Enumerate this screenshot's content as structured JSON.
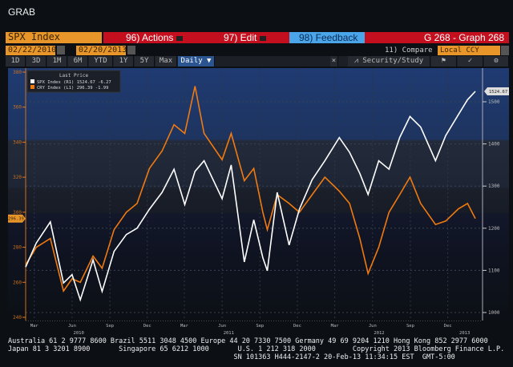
{
  "window_title": "GRAB",
  "toolbar": {
    "ticker": "SPX Index",
    "actions": "96) Actions",
    "edit": "97) Edit",
    "feedback": "98) Feedback",
    "function": "G 268 - Graph 268",
    "start_date": "02/22/2010",
    "end_date": "02/20/2013",
    "compare": "11) Compare",
    "currency": "Local CCY",
    "periods": [
      "1D",
      "3D",
      "1M",
      "6M",
      "YTD",
      "1Y",
      "5Y",
      "Max"
    ],
    "frequency": "Daily ▼",
    "security_study": "Security/Study"
  },
  "colors": {
    "spx": "#ffffff",
    "cry": "#f07a10",
    "red_bar": "#c4101e",
    "amber": "#e8952a",
    "feedback": "#4aa6e8"
  },
  "chart_data": {
    "type": "line",
    "legend": {
      "title": "Last Price",
      "placement": "top-left",
      "entries": [
        {
          "name": "SPX Index",
          "axis": "(R1)",
          "last": "1524.67",
          "change": "-6.27"
        },
        {
          "name": "CRY Index",
          "axis": "(L1)",
          "last": "296.39",
          "change": "-1.99"
        }
      ]
    },
    "left_axis": {
      "ticks": [
        240,
        260,
        280,
        300,
        320,
        340,
        360,
        380
      ],
      "ylim": [
        240,
        380
      ]
    },
    "right_axis": {
      "ticks": [
        1000,
        1100,
        1200,
        1300,
        1400,
        1500
      ],
      "ylim": [
        980,
        1560
      ]
    },
    "xlim": [
      "2010-02-22",
      "2013-02-20"
    ],
    "x_ticks": [
      "Mar",
      "Jun",
      "Sep",
      "Dec",
      "Mar",
      "Jun",
      "Sep",
      "Dec",
      "Mar",
      "Jun",
      "Sep",
      "Dec"
    ],
    "x_tick_dates": [
      "2010-03-15",
      "2010-06-15",
      "2010-09-15",
      "2010-12-15",
      "2011-03-15",
      "2011-06-15",
      "2011-09-15",
      "2011-12-15",
      "2012-03-15",
      "2012-06-15",
      "2012-09-15",
      "2012-12-15"
    ],
    "years": [
      "2010",
      "2011",
      "2012",
      "2013"
    ],
    "year_dates": [
      "2010-07-01",
      "2011-07-01",
      "2012-07-01",
      "2013-01-25"
    ],
    "last_price_tags": {
      "right": "1524.67",
      "left": "296.39"
    },
    "x": [
      "2010-02-22",
      "2010-03-20",
      "2010-04-23",
      "2010-05-25",
      "2010-06-15",
      "2010-07-05",
      "2010-08-05",
      "2010-08-27",
      "2010-09-25",
      "2010-10-25",
      "2010-11-20",
      "2010-12-20",
      "2011-01-20",
      "2011-02-18",
      "2011-03-16",
      "2011-04-10",
      "2011-05-02",
      "2011-06-15",
      "2011-07-07",
      "2011-08-08",
      "2011-08-31",
      "2011-09-22",
      "2011-10-03",
      "2011-10-27",
      "2011-11-25",
      "2011-12-20",
      "2012-01-20",
      "2012-02-20",
      "2012-03-26",
      "2012-04-20",
      "2012-05-15",
      "2012-06-04",
      "2012-06-30",
      "2012-07-25",
      "2012-08-20",
      "2012-09-14",
      "2012-10-10",
      "2012-11-15",
      "2012-12-10",
      "2013-01-10",
      "2013-02-01",
      "2013-02-20"
    ],
    "series": [
      {
        "name": "SPX Index",
        "axis": "right",
        "values": [
          1108,
          1165,
          1215,
          1070,
          1090,
          1030,
          1125,
          1050,
          1145,
          1185,
          1200,
          1245,
          1285,
          1340,
          1256,
          1335,
          1360,
          1270,
          1350,
          1120,
          1220,
          1130,
          1099,
          1285,
          1160,
          1245,
          1315,
          1360,
          1415,
          1380,
          1330,
          1280,
          1360,
          1340,
          1415,
          1465,
          1440,
          1360,
          1420,
          1470,
          1505,
          1524.67
        ]
      },
      {
        "name": "CRY Index",
        "axis": "left",
        "values": [
          270,
          280,
          285,
          255,
          262,
          260,
          275,
          268,
          290,
          300,
          305,
          325,
          335,
          350,
          345,
          372,
          345,
          330,
          345,
          318,
          325,
          300,
          290,
          310,
          305,
          300,
          310,
          320,
          312,
          305,
          285,
          265,
          280,
          300,
          310,
          320,
          305,
          293,
          295,
          302,
          305,
          296.39
        ]
      }
    ]
  },
  "footer": {
    "line1": "Australia 61 2 9777 8600 Brazil 5511 3048 4500 Europe 44 20 7330 7500 Germany 49 69 9204 1210 Hong Kong 852 2977 6000",
    "line2": "Japan 81 3 3201 8900       Singapore 65 6212 1000       U.S. 1 212 318 2000         Copyright 2013 Bloomberg Finance L.P.",
    "line3": "                                                       SN 101363 H444-2147-2 20-Feb-13 11:34:15 EST  GMT-5:00"
  }
}
